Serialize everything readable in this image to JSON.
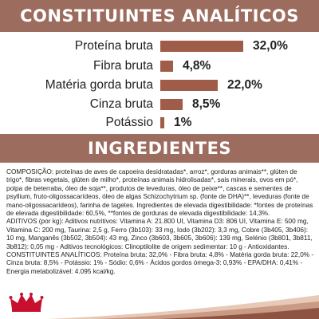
{
  "analysis": {
    "title": "CONSTITUINTES ANALÍTICOS",
    "rows": [
      {
        "label": "Proteína bruta",
        "value": "32,0%",
        "percent": 32.0
      },
      {
        "label": "Fibra bruta",
        "value": "4,8%",
        "percent": 4.8
      },
      {
        "label": "Matéria gorda bruta",
        "value": "22,0%",
        "percent": 22.0
      },
      {
        "label": "Cinza bruta",
        "value": "8,5%",
        "percent": 8.5
      },
      {
        "label": "Potássio",
        "value": "1%",
        "percent": 1.0
      }
    ]
  },
  "chart_data": {
    "type": "bar",
    "title": "CONSTITUINTES ANALÍTICOS",
    "categories": [
      "Proteína bruta",
      "Fibra bruta",
      "Matéria gorda bruta",
      "Cinza bruta",
      "Potássio"
    ],
    "values": [
      32.0,
      4.8,
      22.0,
      8.5,
      1.0
    ],
    "xlabel": "",
    "ylabel": "",
    "grid": false,
    "colors": {
      "bar": "#9f5c48"
    }
  },
  "ingredients": {
    "title": "INGREDIENTES",
    "paragraphs": [
      "COMPOSIÇÃO: proteínas de aves de capoeira desidratadas*, arroz*, gorduras animais**, glúten de trigo*, fibras vegetais, glúten de milho*, proteínas animais hidrolisadas*, sais minerais, ovos em pó*, polpa de beterraba, óleo de soja**, produtos de leveduras, óleo de peixe**, cascas e sementes de psyllium, fruto-oligossacarídeos, óleo de algas Schizochytrium sp. (fonte de DHA)**, leveduras (fonte de mano-oligossacarídeos), farinha de tagetes. Ingredientes de elevada digestibilidade: *fontes de proteínas de elevada digestibilidade: 60,5%, **fontes de gorduras de elevada digestibilidade: 14,3%.",
      "ADITIVOS (por kg): Aditivos nutritivos: Vitamina A: 21.800 UI, Vitamina D3: 806 UI, Vitamina E: 500 mg, Vitamina C: 200 mg, Taurina: 2,5 g, Ferro (3b103): 33 mg, Iodo (3b202): 3,3 mg, Cobre (3b405, 3b406): 10 mg, Manganês (3b502, 3b504): 43 mg, Zinco (3b603, 3b605, 3b606): 139 mg, Selénio (3b801, 3b811, 3b812): 0,05 mg - Aditivos tecnológicos: Clinoptilolite de origem sedimentar: 10 g - Antioxidantes.",
      "CONSTITUINTES ANALÍTICOS: Proteína bruta: 32,0% - Fibra bruta: 4,8% - Matéria gorda bruta: 22,0% - Cinza bruta: 8,5% - Potássio: 1% - Sódio: 0,6% - Ácidos gordos ómega-3: 0,93% - EPA/DHA: 0,41% - Energia metabolizável: 4.095 kcal/kg."
    ]
  },
  "colors": {
    "band": "#9c6c5e",
    "bar": "#9f5c48",
    "brand_red": "#c8102e",
    "ribbon_light": "#e8c9b8",
    "ribbon_mid": "#c99a84",
    "ribbon_dark": "#8e5443"
  },
  "logo": {
    "icon": "crown-icon"
  }
}
